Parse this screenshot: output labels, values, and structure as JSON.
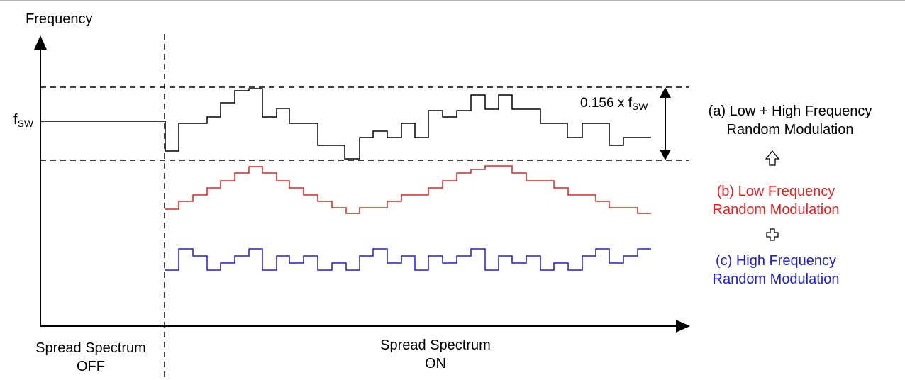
{
  "axis": {
    "y_label": "Frequency",
    "f_main": "f",
    "f_sub": "SW"
  },
  "phases": {
    "off_line1": "Spread Spectrum",
    "off_line2": "OFF",
    "on_line1": "Spread Spectrum",
    "on_line2": "ON"
  },
  "span": {
    "prefix": "0.156 x f",
    "sub": "SW"
  },
  "legend": {
    "a_line1": "(a) Low + High Frequency",
    "a_line2": "Random Modulation",
    "b_line1": "(b) Low Frequency",
    "b_line2": "Random Modulation",
    "c_line1": "(c) High Frequency",
    "c_line2": "Random Modulation",
    "arrow_icon": "up-outline-arrow-icon",
    "plus_icon": "outline-plus-icon"
  },
  "colors": {
    "combined": "#000000",
    "low_freq": "#e8201f",
    "high_freq": "#1f1fd6",
    "axis": "#000000"
  }
}
